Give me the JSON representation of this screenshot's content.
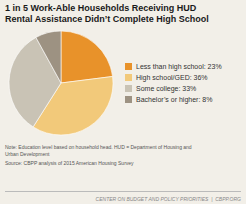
{
  "chart_data": {
    "type": "pie",
    "title": "1 in 5 Work-Able Households Receiving HUD\nRental Assistance Didn’t Complete High School",
    "categories": [
      "Less than high school: 23%",
      "High school/GED: 36%",
      "Some college: 33%",
      "Bachelor’s or higher: 8%"
    ],
    "values": [
      23,
      36,
      33,
      8
    ],
    "colors": [
      "#E8922A",
      "#F2C97A",
      "#C9C3B5",
      "#9D9282"
    ],
    "annotations": [
      "Note: Education level based on household head. HUD = Department of Housing and\nUrban Development",
      "Source: CBPP analysis of 2015 American Housing Survey",
      "CENTER ON BUDGET AND POLICY PRIORITIES  |  CBPP.ORG"
    ]
  }
}
